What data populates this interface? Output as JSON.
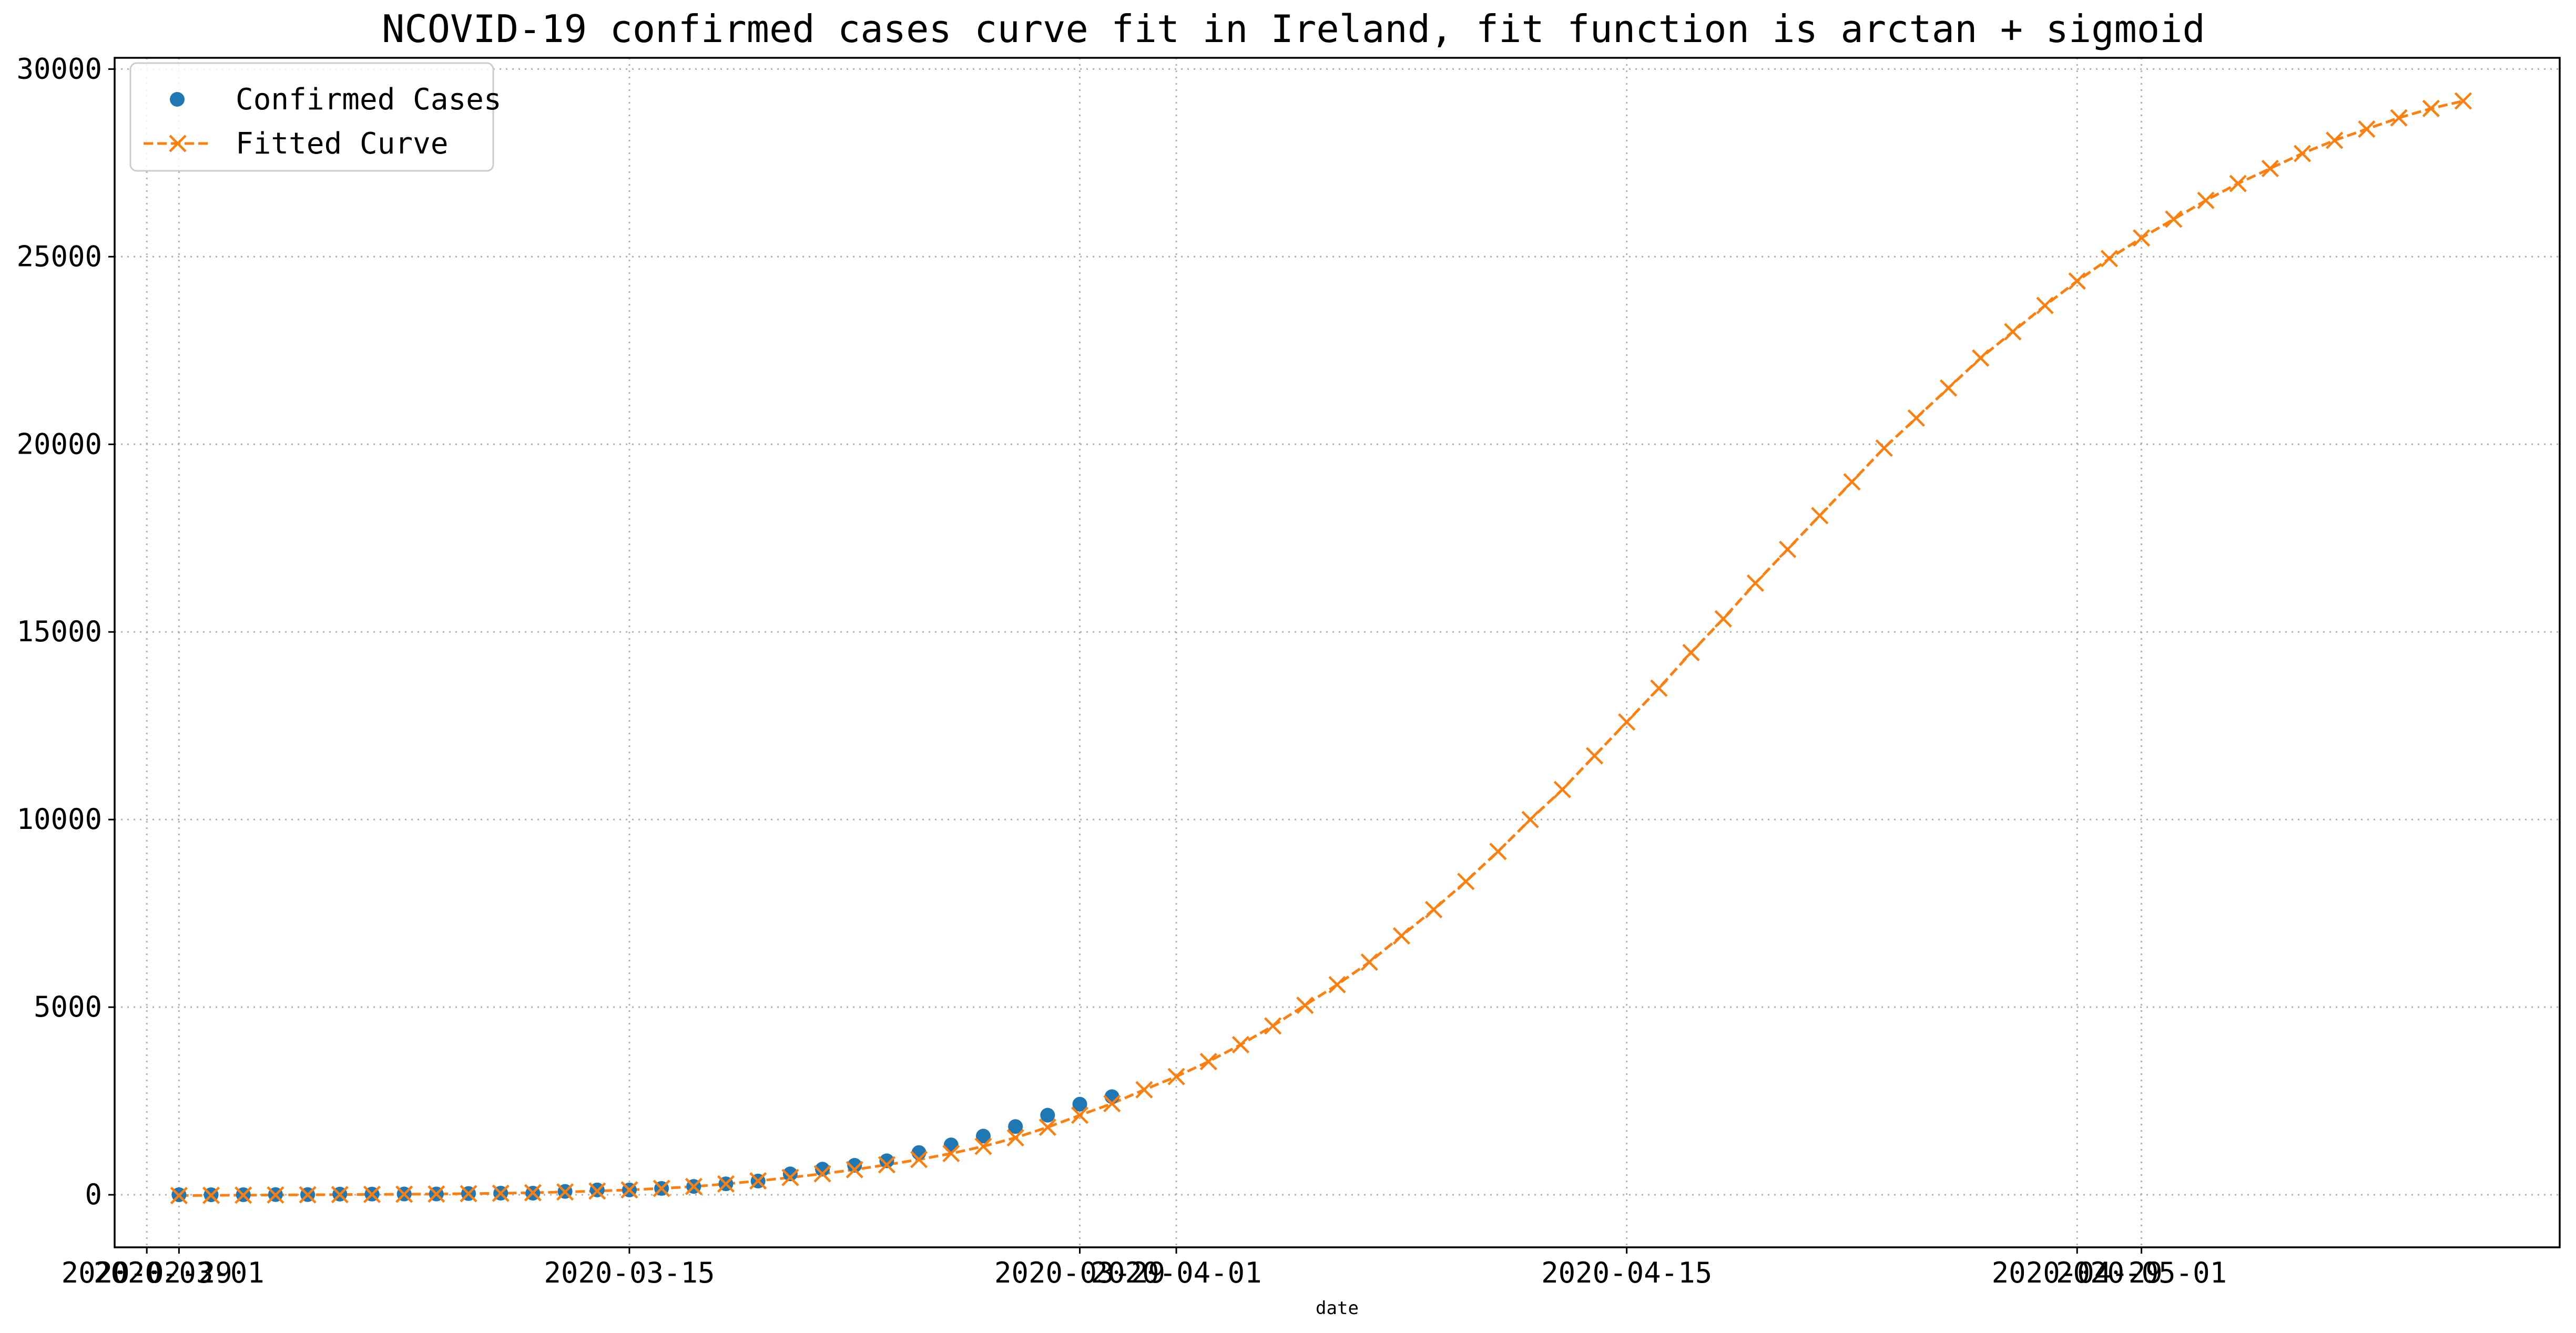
{
  "chart_data": {
    "type": "line",
    "title": "NCOVID-19 confirmed cases curve fit in Ireland, fit function is arctan + sigmoid",
    "xlabel": "date",
    "ylabel": "",
    "x_type": "date",
    "xlim": [
      "2020-02-28",
      "2020-05-14"
    ],
    "ylim": [
      -1400,
      30300
    ],
    "x_ticks": [
      "2020-02-29",
      "2020-03-01",
      "2020-03-15",
      "2020-03-29",
      "2020-04-01",
      "2020-04-15",
      "2020-04-29",
      "2020-05-01"
    ],
    "y_ticks": [
      0,
      5000,
      10000,
      15000,
      20000,
      25000,
      30000
    ],
    "y_tick_labels": [
      "0",
      "5000",
      "10000",
      "15000",
      "20000",
      "25000",
      "30000"
    ],
    "grid": true,
    "legend_position": "upper-left",
    "series": [
      {
        "name": "Confirmed Cases",
        "style": "markers",
        "marker": "circle",
        "color": "#1f77b4",
        "x": [
          "2020-03-01",
          "2020-03-02",
          "2020-03-03",
          "2020-03-04",
          "2020-03-05",
          "2020-03-06",
          "2020-03-07",
          "2020-03-08",
          "2020-03-09",
          "2020-03-10",
          "2020-03-11",
          "2020-03-12",
          "2020-03-13",
          "2020-03-14",
          "2020-03-15",
          "2020-03-16",
          "2020-03-17",
          "2020-03-18",
          "2020-03-19",
          "2020-03-20",
          "2020-03-21",
          "2020-03-22",
          "2020-03-23",
          "2020-03-24",
          "2020-03-25",
          "2020-03-26",
          "2020-03-27",
          "2020-03-28",
          "2020-03-29",
          "2020-03-30"
        ],
        "values": [
          1,
          1,
          2,
          6,
          6,
          18,
          19,
          21,
          21,
          34,
          43,
          43,
          90,
          129,
          129,
          169,
          223,
          292,
          366,
          557,
          683,
          785,
          906,
          1125,
          1329,
          1564,
          1819,
          2121,
          2415,
          2615
        ]
      },
      {
        "name": "Fitted Curve",
        "style": "dashed-line-x-markers",
        "marker": "x",
        "color": "#ff7f0e",
        "x": [
          "2020-03-01",
          "2020-03-02",
          "2020-03-03",
          "2020-03-04",
          "2020-03-05",
          "2020-03-06",
          "2020-03-07",
          "2020-03-08",
          "2020-03-09",
          "2020-03-10",
          "2020-03-11",
          "2020-03-12",
          "2020-03-13",
          "2020-03-14",
          "2020-03-15",
          "2020-03-16",
          "2020-03-17",
          "2020-03-18",
          "2020-03-19",
          "2020-03-20",
          "2020-03-21",
          "2020-03-22",
          "2020-03-23",
          "2020-03-24",
          "2020-03-25",
          "2020-03-26",
          "2020-03-27",
          "2020-03-28",
          "2020-03-29",
          "2020-03-30",
          "2020-03-31",
          "2020-04-01",
          "2020-04-02",
          "2020-04-03",
          "2020-04-04",
          "2020-04-05",
          "2020-04-06",
          "2020-04-07",
          "2020-04-08",
          "2020-04-09",
          "2020-04-10",
          "2020-04-11",
          "2020-04-12",
          "2020-04-13",
          "2020-04-14",
          "2020-04-15",
          "2020-04-16",
          "2020-04-17",
          "2020-04-18",
          "2020-04-19",
          "2020-04-20",
          "2020-04-21",
          "2020-04-22",
          "2020-04-23",
          "2020-04-24",
          "2020-04-25",
          "2020-04-26",
          "2020-04-27",
          "2020-04-28",
          "2020-04-29",
          "2020-04-30",
          "2020-05-01",
          "2020-05-02",
          "2020-05-03",
          "2020-05-04",
          "2020-05-05",
          "2020-05-06",
          "2020-05-07",
          "2020-05-08",
          "2020-05-09",
          "2020-05-10",
          "2020-05-11"
        ],
        "values": [
          -20,
          -15,
          -10,
          -5,
          0,
          5,
          10,
          15,
          20,
          30,
          40,
          55,
          75,
          100,
          130,
          170,
          220,
          290,
          370,
          460,
          560,
          670,
          800,
          940,
          1100,
          1290,
          1520,
          1800,
          2120,
          2430,
          2800,
          3150,
          3550,
          4000,
          4500,
          5050,
          5600,
          6200,
          6900,
          7600,
          8350,
          9150,
          10000,
          10800,
          11700,
          12600,
          13500,
          14450,
          15350,
          16300,
          17200,
          18100,
          19000,
          19900,
          20700,
          21500,
          22300,
          23000,
          23700,
          24350,
          24950,
          25500,
          26000,
          26500,
          26950,
          27350,
          27750,
          28100,
          28400,
          28700,
          28950,
          29150
        ]
      }
    ]
  }
}
